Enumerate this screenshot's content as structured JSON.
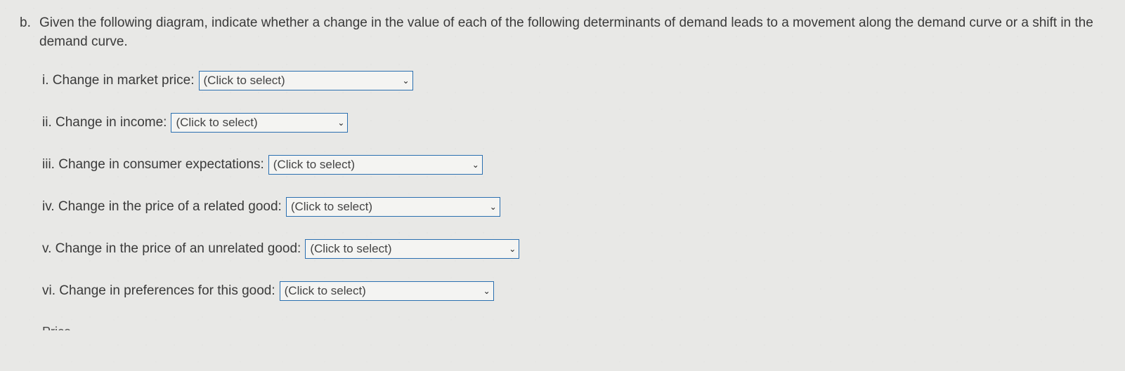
{
  "question": {
    "marker": "b.",
    "prompt": "Given the following diagram, indicate whether a change in the value of each of the following determinants of demand leads to a movement along the demand curve or a shift in the demand curve."
  },
  "items": [
    {
      "marker": "i.",
      "label": "Change in market price:",
      "placeholder": "(Click to select)",
      "select_width": 305
    },
    {
      "marker": "ii.",
      "label": "Change in income:",
      "placeholder": "(Click to select)",
      "select_width": 252
    },
    {
      "marker": "iii.",
      "label": "Change in consumer expectations:",
      "placeholder": "(Click to select)",
      "select_width": 305
    },
    {
      "marker": "iv.",
      "label": "Change in the price of a related good:",
      "placeholder": "(Click to select)",
      "select_width": 305
    },
    {
      "marker": "v.",
      "label": "Change in the price of an unrelated good:",
      "placeholder": "(Click to select)",
      "select_width": 305
    },
    {
      "marker": "vi.",
      "label": "Change in preferences for this good:",
      "placeholder": "(Click to select)",
      "select_width": 305
    }
  ],
  "bottom_cut": "Price",
  "colors": {
    "select_border": "#2a6fb0",
    "background": "#e8e8e6",
    "text": "#3a3a3a"
  }
}
